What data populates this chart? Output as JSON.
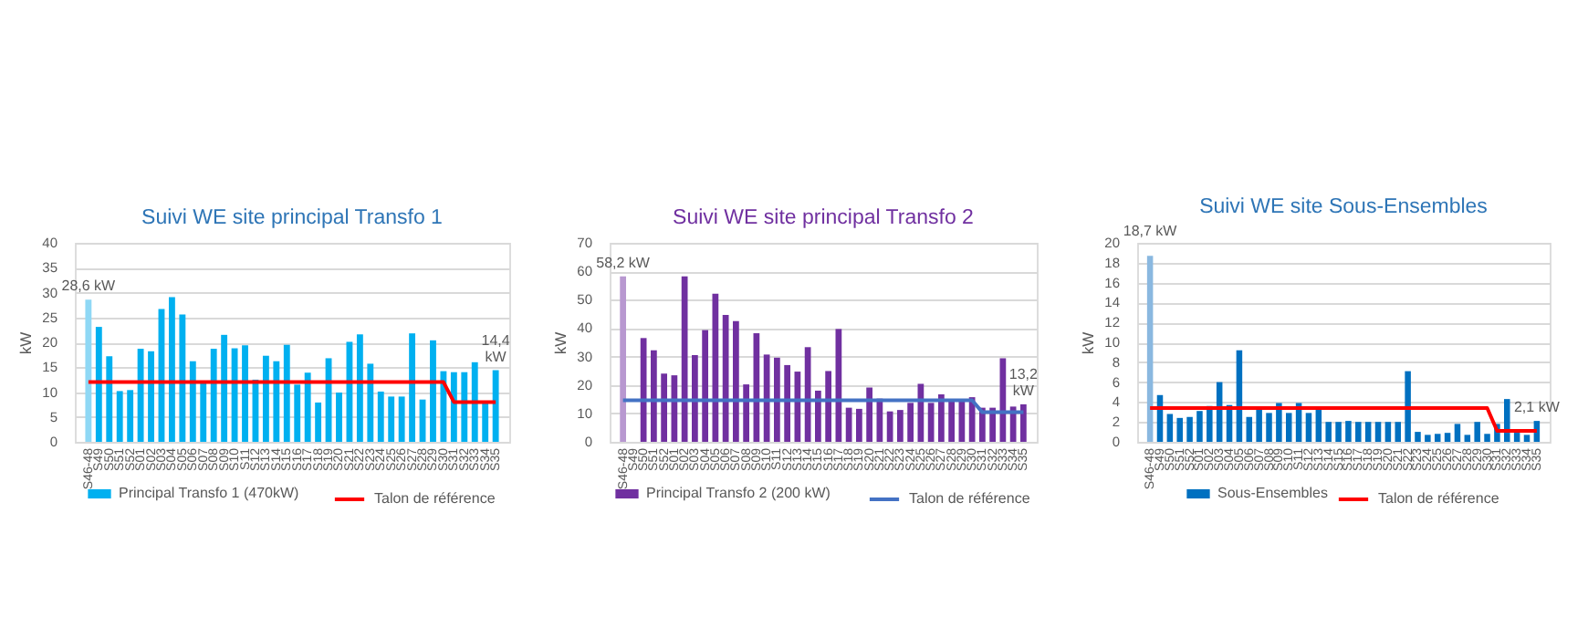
{
  "chart_data": [
    {
      "type": "bar",
      "title": "Suivi WE site principal Transfo 1",
      "ylabel": "kW",
      "ylim": [
        0,
        40
      ],
      "yticks": [
        0,
        5,
        10,
        15,
        20,
        25,
        30,
        35,
        40
      ],
      "grid": "y",
      "legend": "bottom",
      "categories": [
        "S46-48",
        "S49",
        "S50",
        "S51",
        "S52",
        "S01",
        "S02",
        "S03",
        "S04",
        "S05",
        "S06",
        "S07",
        "S08",
        "S09",
        "S10",
        "S11",
        "S12",
        "S13",
        "S14",
        "S15",
        "S16",
        "S17",
        "S18",
        "S19",
        "S20",
        "S21",
        "S22",
        "S23",
        "S24",
        "S25",
        "S26",
        "S27",
        "S28",
        "S29",
        "S30",
        "S31",
        "S32",
        "S33",
        "S34",
        "S35"
      ],
      "series": [
        {
          "name": "Principal Transfo 1 (470kW)",
          "color": "#00b0f0",
          "colors": [
            "#8fd8f5",
            "#00b0f0",
            "#00b0f0",
            "#00b0f0",
            "#00b0f0",
            "#00b0f0",
            "#00b0f0",
            "#00b0f0",
            "#00b0f0",
            "#00b0f0",
            "#00b0f0",
            "#00b0f0",
            "#00b0f0",
            "#00b0f0",
            "#00b0f0",
            "#00b0f0",
            "#00b0f0",
            "#00b0f0",
            "#00b0f0",
            "#00b0f0",
            "#00b0f0",
            "#00b0f0",
            "#00b0f0",
            "#00b0f0",
            "#00b0f0",
            "#00b0f0",
            "#00b0f0",
            "#00b0f0",
            "#00b0f0",
            "#00b0f0",
            "#00b0f0",
            "#00b0f0",
            "#00b0f0",
            "#00b0f0",
            "#00b0f0",
            "#00b0f0",
            "#00b0f0",
            "#00b0f0",
            "#00b0f0",
            "#00b0f0"
          ],
          "values": [
            28.6,
            23.1,
            17.2,
            10.2,
            10.4,
            18.7,
            18.2,
            26.7,
            29.1,
            25.6,
            16.2,
            11.8,
            18.7,
            21.5,
            18.8,
            19.4,
            12.5,
            17.3,
            16.2,
            19.5,
            11.5,
            13.9,
            7.9,
            16.8,
            9.9,
            20.1,
            21.6,
            15.7,
            10.1,
            9.1,
            9.1,
            21.8,
            8.5,
            20.4,
            14.2,
            14.0,
            14.0,
            16.0,
            8.1,
            14.4
          ],
          "value_labels": [
            "28,6 kW",
            null,
            null,
            null,
            null,
            null,
            null,
            null,
            null,
            null,
            null,
            null,
            null,
            null,
            null,
            null,
            null,
            null,
            null,
            null,
            null,
            null,
            null,
            null,
            null,
            null,
            null,
            null,
            null,
            null,
            null,
            null,
            null,
            null,
            null,
            null,
            null,
            null,
            null,
            "14,4 kW"
          ]
        },
        {
          "name": "Talon de référence",
          "type": "line",
          "color": "#ff0000",
          "values": [
            12,
            12,
            12,
            12,
            12,
            12,
            12,
            12,
            12,
            12,
            12,
            12,
            12,
            12,
            12,
            12,
            12,
            12,
            12,
            12,
            12,
            12,
            12,
            12,
            12,
            12,
            12,
            12,
            12,
            12,
            12,
            12,
            12,
            12,
            12,
            8,
            8,
            8,
            8,
            8
          ]
        }
      ]
    },
    {
      "type": "bar",
      "title": "Suivi WE site principal Transfo 2",
      "ylabel": "kW",
      "ylim": [
        0,
        70
      ],
      "yticks": [
        0,
        10,
        20,
        30,
        40,
        50,
        60,
        70
      ],
      "grid": "y",
      "legend": "bottom",
      "categories": [
        "S46-48",
        "S49",
        "S50",
        "S51",
        "S52",
        "S01",
        "S02",
        "S03",
        "S04",
        "S05",
        "S06",
        "S07",
        "S08",
        "S09",
        "S10",
        "S11",
        "S12",
        "S13",
        "S14",
        "S15",
        "S16",
        "S17",
        "S18",
        "S19",
        "S20",
        "S21",
        "S22",
        "S23",
        "S24",
        "S25",
        "S26",
        "S27",
        "S28",
        "S29",
        "S30",
        "S31",
        "S32",
        "S33",
        "S34",
        "S35"
      ],
      "series": [
        {
          "name": "Principal Transfo 2 (200 kW)",
          "color": "#7030a0",
          "colors": [
            "#b898d0",
            null,
            "#7030a0",
            "#7030a0",
            "#7030a0",
            "#7030a0",
            "#7030a0",
            "#7030a0",
            "#7030a0",
            "#7030a0",
            "#7030a0",
            "#7030a0",
            "#7030a0",
            "#7030a0",
            "#7030a0",
            "#7030a0",
            "#7030a0",
            "#7030a0",
            "#7030a0",
            "#7030a0",
            "#7030a0",
            "#7030a0",
            "#7030a0",
            "#7030a0",
            "#7030a0",
            "#7030a0",
            "#7030a0",
            "#7030a0",
            "#7030a0",
            "#7030a0",
            "#7030a0",
            "#7030a0",
            "#7030a0",
            "#7030a0",
            "#7030a0",
            "#7030a0",
            "#7030a0",
            "#7030a0",
            "#7030a0",
            "#7030a0"
          ],
          "values": [
            58.2,
            null,
            36.5,
            32.2,
            24.0,
            23.4,
            58.2,
            30.5,
            39.3,
            52.1,
            44.6,
            42.5,
            20.2,
            38.2,
            30.7,
            29.6,
            27.0,
            24.7,
            33.3,
            18.0,
            24.9,
            39.7,
            12.0,
            11.6,
            19.1,
            15.2,
            10.7,
            11.2,
            13.7,
            20.4,
            13.7,
            16.7,
            14.2,
            14.2,
            15.7,
            12.0,
            12.0,
            29.4,
            12.4,
            13.2
          ],
          "value_labels": [
            "58,2 kW",
            null,
            null,
            null,
            null,
            null,
            null,
            null,
            null,
            null,
            null,
            null,
            null,
            null,
            null,
            null,
            null,
            null,
            null,
            null,
            null,
            null,
            null,
            null,
            null,
            null,
            null,
            null,
            null,
            null,
            null,
            null,
            null,
            null,
            null,
            null,
            null,
            null,
            null,
            "13,2 kW"
          ]
        },
        {
          "name": "Talon de référence",
          "type": "line",
          "color": "#4472c4",
          "values": [
            14.6,
            14.6,
            14.6,
            14.6,
            14.6,
            14.6,
            14.6,
            14.6,
            14.6,
            14.6,
            14.6,
            14.6,
            14.6,
            14.6,
            14.6,
            14.6,
            14.6,
            14.6,
            14.6,
            14.6,
            14.6,
            14.6,
            14.6,
            14.6,
            14.6,
            14.6,
            14.6,
            14.6,
            14.6,
            14.6,
            14.6,
            14.6,
            14.6,
            14.6,
            14.6,
            10.4,
            10.4,
            10.4,
            10.4,
            10.4
          ]
        }
      ]
    },
    {
      "type": "bar",
      "title": "Suivi WE site Sous-Ensembles",
      "ylabel": "kW",
      "ylim": [
        0,
        20
      ],
      "yticks": [
        0,
        2,
        4,
        6,
        8,
        10,
        12,
        14,
        16,
        18,
        20
      ],
      "grid": "y",
      "legend": "bottom",
      "categories": [
        "S46-48",
        "S49",
        "S50",
        "S51",
        "S52",
        "S01",
        "S02",
        "S03",
        "S04",
        "S05",
        "S06",
        "S07",
        "S08",
        "S09",
        "S10",
        "S11",
        "S12",
        "S13",
        "S14",
        "S15",
        "S16",
        "S17",
        "S18",
        "S19",
        "S20",
        "S21",
        "S22",
        "S23",
        "S24",
        "S25",
        "S26",
        "S27",
        "S28",
        "S29",
        "S30",
        "S31",
        "S32",
        "S33",
        "S34",
        "S35"
      ],
      "series": [
        {
          "name": "Sous-Ensembles",
          "color": "#0070c0",
          "colors": [
            "#8ab8e0",
            "#0070c0",
            "#0070c0",
            "#0070c0",
            "#0070c0",
            "#0070c0",
            "#0070c0",
            "#0070c0",
            "#0070c0",
            "#0070c0",
            "#0070c0",
            "#0070c0",
            "#0070c0",
            "#0070c0",
            "#0070c0",
            "#0070c0",
            "#0070c0",
            "#0070c0",
            "#0070c0",
            "#0070c0",
            "#0070c0",
            "#0070c0",
            "#0070c0",
            "#0070c0",
            "#0070c0",
            "#0070c0",
            "#0070c0",
            "#0070c0",
            "#0070c0",
            "#0070c0",
            "#0070c0",
            "#0070c0",
            "#0070c0",
            "#0070c0",
            "#0070c0",
            "#0070c0",
            "#0070c0",
            "#0070c0",
            "#0070c0",
            "#0070c0"
          ],
          "values": [
            18.7,
            4.7,
            2.8,
            2.4,
            2.5,
            3.1,
            3.6,
            6.0,
            3.7,
            9.2,
            2.5,
            3.4,
            2.9,
            3.9,
            2.9,
            3.9,
            2.9,
            3.4,
            2.0,
            2.0,
            2.1,
            2.0,
            2.0,
            2.0,
            2.0,
            2.0,
            7.1,
            1.0,
            0.7,
            0.8,
            0.9,
            1.8,
            0.7,
            2.0,
            0.8,
            1.8,
            4.3,
            1.0,
            0.7,
            2.1
          ],
          "value_labels": [
            "18,7 kW",
            null,
            null,
            null,
            null,
            null,
            null,
            null,
            null,
            null,
            null,
            null,
            null,
            null,
            null,
            null,
            null,
            null,
            null,
            null,
            null,
            null,
            null,
            null,
            null,
            null,
            null,
            null,
            null,
            null,
            null,
            null,
            null,
            null,
            null,
            null,
            null,
            null,
            null,
            "2,1 kW"
          ]
        },
        {
          "name": "Talon de référence",
          "type": "line",
          "color": "#ff0000",
          "values": [
            3.4,
            3.4,
            3.4,
            3.4,
            3.4,
            3.4,
            3.4,
            3.4,
            3.4,
            3.4,
            3.4,
            3.4,
            3.4,
            3.4,
            3.4,
            3.4,
            3.4,
            3.4,
            3.4,
            3.4,
            3.4,
            3.4,
            3.4,
            3.4,
            3.4,
            3.4,
            3.4,
            3.4,
            3.4,
            3.4,
            3.4,
            3.4,
            3.4,
            3.4,
            3.4,
            1.1,
            1.1,
            1.1,
            1.1,
            1.1
          ]
        }
      ]
    }
  ]
}
